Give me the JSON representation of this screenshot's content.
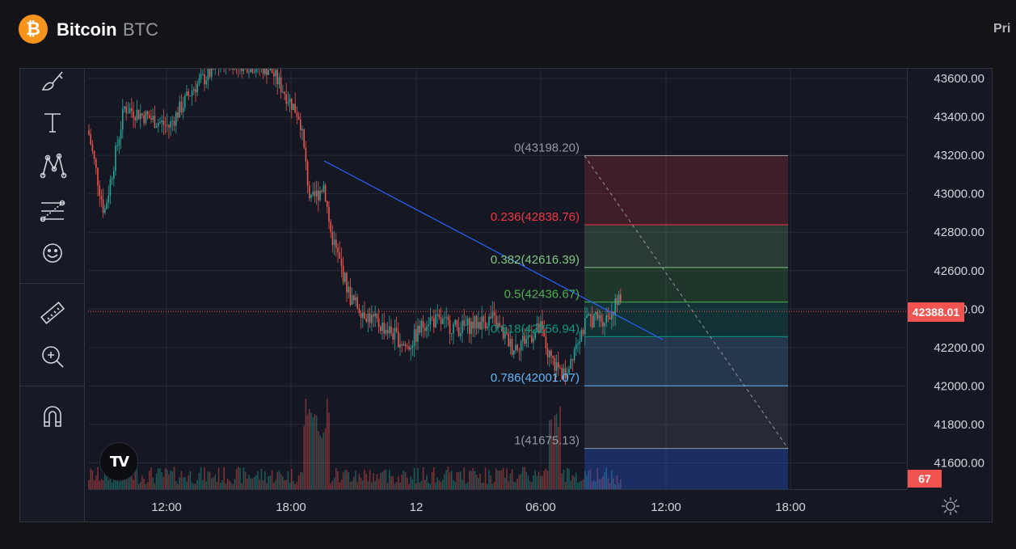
{
  "header": {
    "coin_logo_glyph": "₿",
    "coin_name": "Bitcoin",
    "coin_ticker": "BTC",
    "price_tab_label": "Pri"
  },
  "toolbar": {
    "tools": [
      {
        "name": "brush-icon"
      },
      {
        "name": "text-tool-icon"
      },
      {
        "name": "pattern-tool-icon"
      },
      {
        "name": "fib-tool-icon"
      },
      {
        "name": "emoji-icon"
      },
      {
        "name": "ruler-icon"
      },
      {
        "name": "zoom-in-icon"
      },
      {
        "name": "magnet-icon"
      }
    ]
  },
  "price_axis": {
    "labels": [
      "43600.00",
      "43400.00",
      "43200.00",
      "43000.00",
      "42800.00",
      "42600.00",
      "42400.00",
      "42200.00",
      "42000.00",
      "41800.00",
      "41600.00"
    ]
  },
  "time_axis": {
    "labels": [
      "12:00",
      "18:00",
      "12",
      "06:00",
      "12:00",
      "18:00"
    ]
  },
  "last_price": "42388.01",
  "volume_badge": "67",
  "fib": {
    "levels": [
      {
        "label": "0(43198.20)",
        "ratio": 0,
        "price": 43198.2,
        "color": "#9598a1"
      },
      {
        "label": "0.236(42838.76)",
        "ratio": 0.236,
        "price": 42838.76,
        "color": "#f23645"
      },
      {
        "label": "0.382(42616.39)",
        "ratio": 0.382,
        "price": 42616.39,
        "color": "#81c784"
      },
      {
        "label": "0.5(42436.67)",
        "ratio": 0.5,
        "price": 42436.67,
        "color": "#4caf50"
      },
      {
        "label": "0.618(42256.94)",
        "ratio": 0.618,
        "price": 42256.94,
        "color": "#089981"
      },
      {
        "label": "0.786(42001.07)",
        "ratio": 0.786,
        "price": 42001.07,
        "color": "#64b5f6"
      },
      {
        "label": "1(41675.13)",
        "ratio": 1,
        "price": 41675.13,
        "color": "#9598a1"
      }
    ]
  },
  "colors": {
    "up": "#26a69a",
    "down": "#ef5350",
    "trendline": "#2962ff",
    "accent": "#f7931a"
  }
}
